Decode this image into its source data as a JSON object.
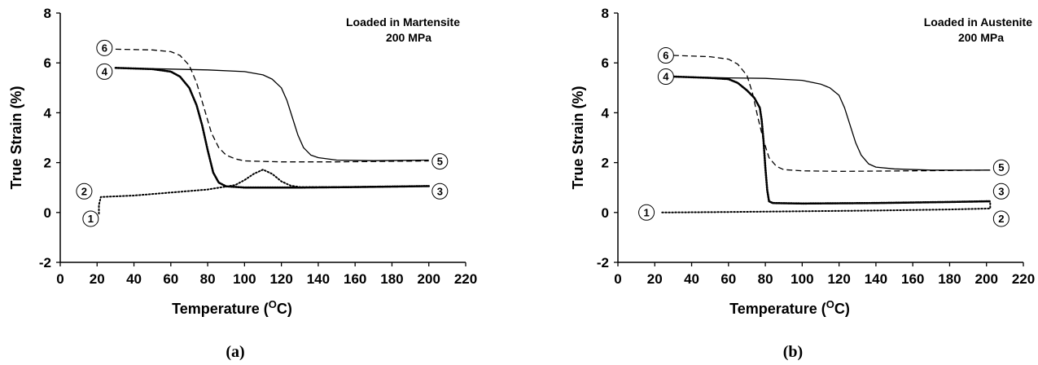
{
  "chart_data": [
    {
      "type": "line",
      "panel_label": "(a)",
      "annotation": [
        "Loaded in Martensite",
        "200 MPa"
      ],
      "xlabel_prefix": "Temperature (",
      "xlabel_sup": "O",
      "xlabel_suffix": "C)",
      "ylabel": "True Strain (%)",
      "xlim": [
        0,
        220
      ],
      "ylim": [
        -2,
        8
      ],
      "xticks": [
        0,
        20,
        40,
        60,
        80,
        100,
        120,
        140,
        160,
        180,
        200,
        220
      ],
      "yticks": [
        -2,
        0,
        2,
        4,
        6,
        8
      ],
      "grid": false,
      "legend": "none",
      "series": [
        {
          "style": "dotted",
          "x": [
            21,
            21,
            22,
            40,
            60,
            80,
            95,
            100,
            105,
            110,
            115,
            120,
            125,
            130,
            150,
            180,
            200
          ],
          "y": [
            -0.05,
            0.3,
            0.62,
            0.68,
            0.8,
            0.92,
            1.1,
            1.3,
            1.55,
            1.72,
            1.55,
            1.25,
            1.08,
            1.02,
            1.02,
            1.04,
            1.06
          ]
        },
        {
          "style": "dotted-heavy",
          "x": [
            30,
            50,
            60,
            65,
            70,
            74,
            77,
            80,
            83,
            86,
            90,
            100,
            130,
            160,
            200
          ],
          "y": [
            5.8,
            5.75,
            5.65,
            5.45,
            5.0,
            4.3,
            3.5,
            2.5,
            1.6,
            1.2,
            1.05,
            1.0,
            1.0,
            1.02,
            1.06
          ]
        },
        {
          "style": "solid",
          "x": [
            30,
            60,
            80,
            100,
            110,
            115,
            120,
            123,
            126,
            129,
            132,
            136,
            140,
            150,
            170,
            200
          ],
          "y": [
            5.8,
            5.75,
            5.72,
            5.65,
            5.52,
            5.35,
            5.0,
            4.5,
            3.8,
            3.1,
            2.6,
            2.3,
            2.2,
            2.1,
            2.08,
            2.1
          ]
        },
        {
          "style": "dashed",
          "x": [
            30,
            50,
            60,
            65,
            70,
            74,
            78,
            82,
            86,
            90,
            95,
            100,
            120,
            150,
            200
          ],
          "y": [
            6.55,
            6.52,
            6.45,
            6.3,
            5.9,
            5.2,
            4.2,
            3.2,
            2.6,
            2.3,
            2.15,
            2.07,
            2.03,
            2.03,
            2.07
          ]
        }
      ],
      "markers": [
        {
          "label": "1",
          "x": 16.5,
          "y": -0.25
        },
        {
          "label": "2",
          "x": 13,
          "y": 0.85
        },
        {
          "label": "3",
          "x": 206,
          "y": 0.85
        },
        {
          "label": "4",
          "x": 24,
          "y": 5.65
        },
        {
          "label": "5",
          "x": 206,
          "y": 2.05
        },
        {
          "label": "6",
          "x": 24,
          "y": 6.6
        }
      ]
    },
    {
      "type": "line",
      "panel_label": "(b)",
      "annotation": [
        "Loaded in Austenite",
        "200 MPa"
      ],
      "xlabel_prefix": "Temperature (",
      "xlabel_sup": "O",
      "xlabel_suffix": "C)",
      "ylabel": "True Strain (%)",
      "xlim": [
        0,
        220
      ],
      "ylim": [
        -2,
        8
      ],
      "xticks": [
        0,
        20,
        40,
        60,
        80,
        100,
        120,
        140,
        160,
        180,
        200,
        220
      ],
      "yticks": [
        -2,
        0,
        2,
        4,
        6,
        8
      ],
      "grid": false,
      "legend": "none",
      "series": [
        {
          "style": "dotted",
          "x": [
            24,
            60,
            100,
            140,
            180,
            202,
            202
          ],
          "y": [
            0.0,
            0.02,
            0.05,
            0.08,
            0.12,
            0.16,
            0.45
          ]
        },
        {
          "style": "dotted-heavy",
          "x": [
            30,
            50,
            60,
            65,
            70,
            74,
            77,
            78,
            79,
            80,
            81,
            82,
            84,
            100,
            140,
            180,
            202
          ],
          "y": [
            5.45,
            5.4,
            5.35,
            5.2,
            4.9,
            4.6,
            4.2,
            3.7,
            2.9,
            1.8,
            0.9,
            0.45,
            0.38,
            0.36,
            0.38,
            0.42,
            0.45
          ]
        },
        {
          "style": "solid",
          "x": [
            30,
            60,
            80,
            100,
            110,
            115,
            120,
            123,
            126,
            129,
            132,
            136,
            140,
            150,
            170,
            202
          ],
          "y": [
            5.45,
            5.4,
            5.38,
            5.3,
            5.15,
            5.0,
            4.7,
            4.2,
            3.5,
            2.8,
            2.3,
            1.95,
            1.82,
            1.75,
            1.7,
            1.7
          ]
        },
        {
          "style": "dashed",
          "x": [
            30,
            50,
            60,
            65,
            70,
            73,
            76,
            79,
            82,
            86,
            90,
            100,
            120,
            160,
            202
          ],
          "y": [
            6.3,
            6.25,
            6.15,
            5.95,
            5.5,
            4.8,
            3.8,
            2.9,
            2.2,
            1.85,
            1.72,
            1.67,
            1.65,
            1.67,
            1.7
          ]
        }
      ],
      "markers": [
        {
          "label": "1",
          "x": 15.5,
          "y": 0.0
        },
        {
          "label": "2",
          "x": 208,
          "y": -0.25
        },
        {
          "label": "3",
          "x": 208,
          "y": 0.85
        },
        {
          "label": "4",
          "x": 26,
          "y": 5.45
        },
        {
          "label": "5",
          "x": 208,
          "y": 1.8
        },
        {
          "label": "6",
          "x": 26,
          "y": 6.3
        }
      ]
    }
  ]
}
